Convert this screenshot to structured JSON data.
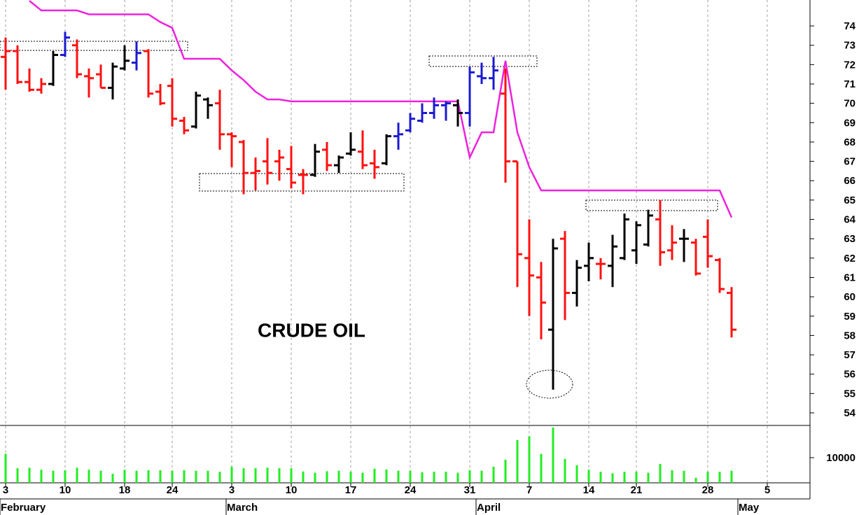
{
  "chart_data": {
    "type": "ohlc",
    "title": "CRUDE OIL",
    "categories": [
      "3",
      null,
      null,
      null,
      null,
      "10",
      null,
      null,
      null,
      null,
      "18",
      null,
      null,
      null,
      "24",
      null,
      null,
      null,
      null,
      "3",
      null,
      null,
      null,
      null,
      "10",
      null,
      null,
      null,
      null,
      "17",
      null,
      null,
      null,
      null,
      "24",
      null,
      null,
      null,
      null,
      "31",
      null,
      null,
      null,
      null,
      "7",
      null,
      null,
      null,
      null,
      "14",
      null,
      null,
      null,
      "21",
      null,
      null,
      null,
      null,
      null,
      "28",
      null,
      null,
      null,
      null,
      "5"
    ],
    "month_labels": [
      "February",
      null,
      null,
      null,
      null,
      null,
      null,
      null,
      null,
      null,
      null,
      null,
      null,
      null,
      null,
      null,
      null,
      null,
      null,
      "March",
      null,
      null,
      null,
      null,
      null,
      null,
      null,
      null,
      null,
      null,
      null,
      null,
      null,
      null,
      null,
      null,
      null,
      null,
      null,
      null,
      "April",
      null,
      null,
      null,
      null,
      null,
      null,
      null,
      null,
      null,
      null,
      null,
      null,
      null,
      null,
      null,
      null,
      null,
      null,
      null,
      null,
      null,
      "May",
      null,
      null
    ],
    "open": [
      72.4,
      72.7,
      71.1,
      70.7,
      71.0,
      72.5,
      73.0,
      71.4,
      71.5,
      70.8,
      71.8,
      72.1,
      72.7,
      70.6,
      70.9,
      69.1,
      68.8,
      70.2,
      70.0,
      68.4,
      68.0,
      66.4,
      67.0,
      67.0,
      66.6,
      66.3,
      66.3,
      67.6,
      66.8,
      67.4,
      67.5,
      66.9,
      66.9,
      68.3,
      68.6,
      69.1,
      69.5,
      69.9,
      69.9,
      69.5,
      71.4,
      71.3,
      70.5,
      67.0,
      62.0,
      61.0,
      58.3,
      63.0,
      60.2,
      61.6,
      61.7,
      61.6,
      62.0,
      62.4,
      62.7,
      64.0,
      62.4,
      63.0,
      62.8,
      63.1,
      61.9,
      60.2,
      null,
      null,
      null
    ],
    "high": [
      73.4,
      73.0,
      71.8,
      71.3,
      72.7,
      73.7,
      73.3,
      71.8,
      72.0,
      72.1,
      73.0,
      73.2,
      72.8,
      71.0,
      71.3,
      69.3,
      70.6,
      70.3,
      70.7,
      68.5,
      68.1,
      67.2,
      68.2,
      67.6,
      67.8,
      66.6,
      67.9,
      68.0,
      67.3,
      68.5,
      68.6,
      67.6,
      68.4,
      69.0,
      69.5,
      70.0,
      70.3,
      70.1,
      70.2,
      71.9,
      72.1,
      72.4,
      71.8,
      67.0,
      64.0,
      61.8,
      63.0,
      63.4,
      61.9,
      62.8,
      62.0,
      63.2,
      64.3,
      63.9,
      64.5,
      65.0,
      63.7,
      63.5,
      63.0,
      64.0,
      62.0,
      60.5,
      null,
      null,
      null
    ],
    "low": [
      70.7,
      71.0,
      70.6,
      70.5,
      70.9,
      72.4,
      71.3,
      70.3,
      70.8,
      70.2,
      71.7,
      71.7,
      70.3,
      69.9,
      68.8,
      68.4,
      68.7,
      69.2,
      67.6,
      66.7,
      65.3,
      65.5,
      65.8,
      66.0,
      65.6,
      65.3,
      66.2,
      66.5,
      66.4,
      67.3,
      66.6,
      66.1,
      66.8,
      67.6,
      68.5,
      69.0,
      69.2,
      69.1,
      68.8,
      68.8,
      71.0,
      70.7,
      65.9,
      60.5,
      59.0,
      57.8,
      55.2,
      58.8,
      59.5,
      60.8,
      60.9,
      60.5,
      61.9,
      61.7,
      62.6,
      61.6,
      61.9,
      61.8,
      61.1,
      61.5,
      60.2,
      57.9,
      null,
      null,
      null
    ],
    "close": [
      72.7,
      71.1,
      70.7,
      71.0,
      72.5,
      73.4,
      71.5,
      71.3,
      70.8,
      71.9,
      72.2,
      72.6,
      70.5,
      70.0,
      69.2,
      68.6,
      70.4,
      69.9,
      68.4,
      68.3,
      66.4,
      66.5,
      66.4,
      67.2,
      65.9,
      66.3,
      67.5,
      66.8,
      67.2,
      67.6,
      66.8,
      66.7,
      68.3,
      68.4,
      69.2,
      69.5,
      69.9,
      70.0,
      69.5,
      71.6,
      71.3,
      71.7,
      67.0,
      62.2,
      61.1,
      59.7,
      62.5,
      60.2,
      61.5,
      62.0,
      61.7,
      62.6,
      64.0,
      63.7,
      64.2,
      62.3,
      62.8,
      63.0,
      61.2,
      62.1,
      60.4,
      58.3,
      null,
      null,
      null
    ],
    "colors": [
      "#ff1010",
      "#ff1010",
      "#ff1010",
      "#ff1010",
      "#000000",
      "#1a1ad0",
      "#ff1010",
      "#ff1010",
      "#ff1010",
      "#000000",
      "#000000",
      "#1a1ad0",
      "#ff1010",
      "#ff1010",
      "#ff1010",
      "#ff1010",
      "#000000",
      "#000000",
      "#ff1010",
      "#ff1010",
      "#ff1010",
      "#ff1010",
      "#ff1010",
      "#ff1010",
      "#ff1010",
      "#ff1010",
      "#000000",
      "#ff1010",
      "#000000",
      "#000000",
      "#ff1010",
      "#ff1010",
      "#000000",
      "#1a1ad0",
      "#1a1ad0",
      "#1a1ad0",
      "#1a1ad0",
      "#1a1ad0",
      "#000000",
      "#1a1ad0",
      "#1a1ad0",
      "#1a1ad0",
      "#ff1010",
      "#ff1010",
      "#ff1010",
      "#ff1010",
      "#000000",
      "#ff1010",
      "#000000",
      "#000000",
      "#ff1010",
      "#000000",
      "#000000",
      "#000000",
      "#000000",
      "#ff1010",
      "#ff1010",
      "#000000",
      "#ff1010",
      "#ff1010",
      "#ff1010",
      "#ff1010",
      null,
      null,
      null
    ],
    "stop_line": {
      "color": "#ee22dd",
      "values": [
        null,
        null,
        75.3,
        74.8,
        74.8,
        74.8,
        74.8,
        74.6,
        74.6,
        74.6,
        74.6,
        74.6,
        74.6,
        74.2,
        73.9,
        72.3,
        72.3,
        72.3,
        72.3,
        71.7,
        71.2,
        70.6,
        70.2,
        70.2,
        70.1,
        70.1,
        70.1,
        70.1,
        70.1,
        70.1,
        70.1,
        70.1,
        70.1,
        70.1,
        70.1,
        70.1,
        70.1,
        70.1,
        70.1,
        67.2,
        68.5,
        68.5,
        72.2,
        68.5,
        66.7,
        65.5,
        65.5,
        65.5,
        65.5,
        65.5,
        65.5,
        65.5,
        65.5,
        65.5,
        65.5,
        65.5,
        65.5,
        65.5,
        65.5,
        65.5,
        65.5,
        64.1,
        null,
        null,
        null
      ]
    },
    "ylim": [
      53.35,
      75.34
    ],
    "yticks": [
      54,
      55,
      56,
      57,
      58,
      59,
      60,
      61,
      62,
      63,
      64,
      65,
      66,
      67,
      68,
      69,
      70,
      71,
      72,
      73,
      74
    ],
    "volume": {
      "color": "#22ee22",
      "values": [
        11500,
        5800,
        6000,
        5200,
        4800,
        5000,
        6000,
        5200,
        4800,
        3600,
        5200,
        4800,
        5000,
        5000,
        4800,
        5000,
        4800,
        4800,
        4400,
        6400,
        5800,
        5800,
        6000,
        5800,
        5800,
        4500,
        4000,
        4600,
        4800,
        4400,
        4000,
        5600,
        5300,
        4800,
        4800,
        4200,
        4400,
        4400,
        4000,
        5000,
        4800,
        6400,
        9200,
        17000,
        18500,
        11500,
        22000,
        9500,
        7000,
        5200,
        4400,
        3800,
        4400,
        4400,
        4000,
        7500,
        5000,
        4800,
        2000,
        4400,
        4400,
        4800,
        null,
        null,
        null
      ],
      "ylim": [
        0,
        22800
      ],
      "yticks": [
        10000
      ]
    }
  }
}
